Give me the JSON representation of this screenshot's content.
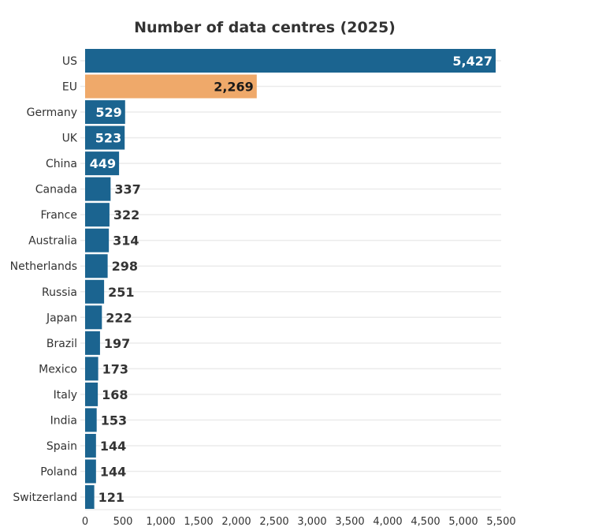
{
  "chart_data": {
    "type": "bar",
    "orientation": "horizontal",
    "title": "Number of data centres (2025)",
    "xlabel": "",
    "ylabel": "",
    "xlim": [
      0,
      5500
    ],
    "xticks": [
      "0",
      "500",
      "1,000",
      "1,500",
      "2,000",
      "2,500",
      "3,000",
      "3,500",
      "4,000",
      "4,500",
      "5,000",
      "5,500"
    ],
    "grid": true,
    "categories": [
      "US",
      "EU",
      "Germany",
      "UK",
      "China",
      "Canada",
      "France",
      "Australia",
      "Netherlands",
      "Russia",
      "Japan",
      "Brazil",
      "Mexico",
      "Italy",
      "India",
      "Spain",
      "Poland",
      "Switzerland"
    ],
    "values": [
      5427,
      2269,
      529,
      523,
      449,
      337,
      322,
      314,
      298,
      251,
      222,
      197,
      173,
      168,
      153,
      144,
      144,
      121
    ],
    "value_labels": [
      "5,427",
      "2,269",
      "529",
      "523",
      "449",
      "337",
      "322",
      "314",
      "298",
      "251",
      "222",
      "197",
      "173",
      "168",
      "153",
      "144",
      "144",
      "121"
    ],
    "highlight": "EU",
    "colors": {
      "default": "#1b6490",
      "highlight": "#efa96a"
    }
  }
}
